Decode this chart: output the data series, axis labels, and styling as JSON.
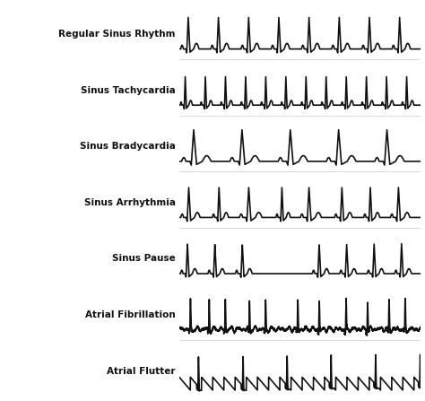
{
  "labels": [
    "Regular Sinus Rhythm",
    "Sinus Tachycardia",
    "Sinus Bradycardia",
    "Sinus Arrhythmia",
    "Sinus Pause",
    "Atrial Fibrillation",
    "Atrial Flutter"
  ],
  "fig_width": 4.74,
  "fig_height": 4.47,
  "bg_color": "#ffffff",
  "line_color": "#111111",
  "label_color": "#111111",
  "label_fontsize": 7.5,
  "label_bold": true,
  "lw": 1.2
}
